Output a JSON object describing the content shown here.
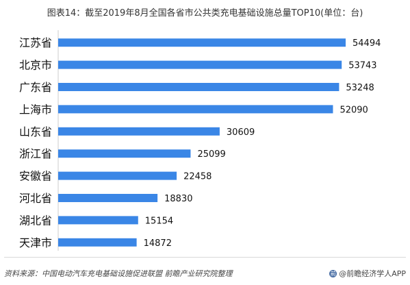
{
  "title": "图表14：截至2019年8月全国各省市公共类充电基础设施总量TOP10(单位：台)",
  "source": "资料来源：中国电动汽车充电基础设施促进联盟 前瞻产业研究院整理",
  "brand": "@前瞻经济学人APP",
  "colors": {
    "bar": "#3a86e6"
  },
  "chart_data": {
    "type": "bar",
    "orientation": "horizontal",
    "title": "图表14：截至2019年8月全国各省市公共类充电基础设施总量TOP10(单位：台)",
    "categories": [
      "江苏省",
      "北京市",
      "广东省",
      "上海市",
      "山东省",
      "浙江省",
      "安徽省",
      "河北省",
      "湖北省",
      "天津市"
    ],
    "values": [
      54494,
      53743,
      53248,
      52090,
      30609,
      25099,
      22458,
      18830,
      15154,
      14872
    ],
    "xlim": [
      0,
      60000
    ],
    "grid": false,
    "data_labels": true
  }
}
